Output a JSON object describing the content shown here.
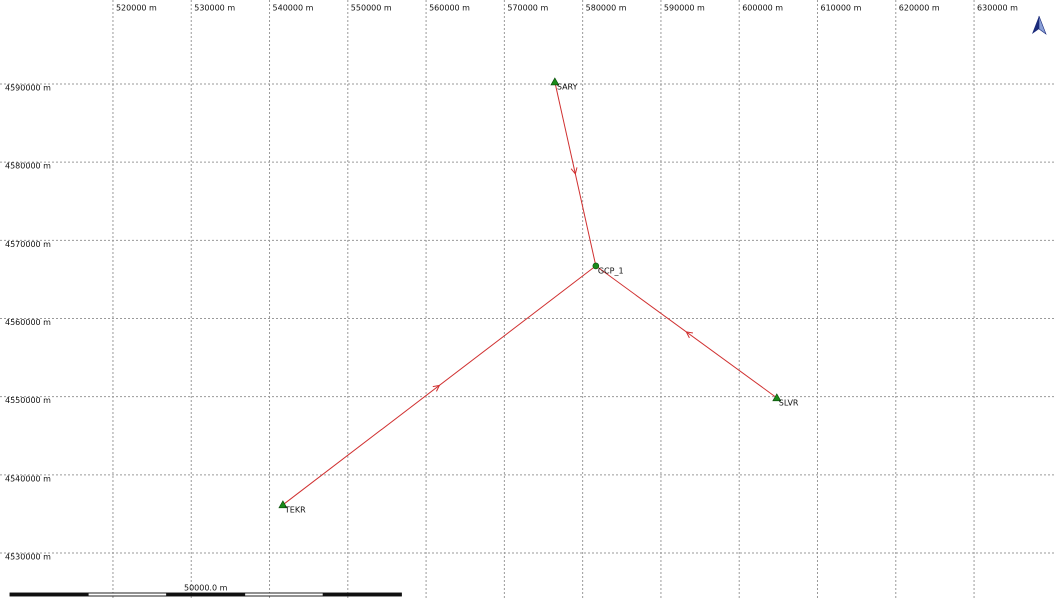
{
  "chart_data": {
    "type": "scatter",
    "xlim": [
      505570,
      640340
    ],
    "ylim": [
      4523990,
      4600740
    ],
    "xticks": [
      {
        "value": 520000,
        "label": "520000 m"
      },
      {
        "value": 530000,
        "label": "530000 m"
      },
      {
        "value": 540000,
        "label": "540000 m"
      },
      {
        "value": 550000,
        "label": "550000 m"
      },
      {
        "value": 560000,
        "label": "560000 m"
      },
      {
        "value": 570000,
        "label": "570000 m"
      },
      {
        "value": 580000,
        "label": "580000 m"
      },
      {
        "value": 590000,
        "label": "590000 m"
      },
      {
        "value": 600000,
        "label": "600000 m"
      },
      {
        "value": 610000,
        "label": "610000 m"
      },
      {
        "value": 620000,
        "label": "620000 m"
      },
      {
        "value": 630000,
        "label": "630000 m"
      }
    ],
    "yticks": [
      {
        "value": 4590000,
        "label": "4590000 m"
      },
      {
        "value": 4580000,
        "label": "4580000 m"
      },
      {
        "value": 4570000,
        "label": "4570000 m"
      },
      {
        "value": 4560000,
        "label": "4560000 m"
      },
      {
        "value": 4550000,
        "label": "4550000 m"
      },
      {
        "value": 4540000,
        "label": "4540000 m"
      },
      {
        "value": 4530000,
        "label": "4530000 m"
      }
    ],
    "grid": true,
    "line_color": "#d03030",
    "marker_color": "#1a8a1a",
    "points": [
      {
        "name": "SARY",
        "x": 576450,
        "y": 4590256,
        "marker": "triangle"
      },
      {
        "name": "GCP_1",
        "x": 581686,
        "y": 4566726,
        "marker": "circle"
      },
      {
        "name": "SLVR",
        "x": 604802,
        "y": 4549847,
        "marker": "triangle"
      },
      {
        "name": "TEKR",
        "x": 541711,
        "y": 4536164,
        "marker": "triangle"
      }
    ],
    "scale_bar": {
      "value": 50000,
      "label": "50000.0 m"
    }
  }
}
